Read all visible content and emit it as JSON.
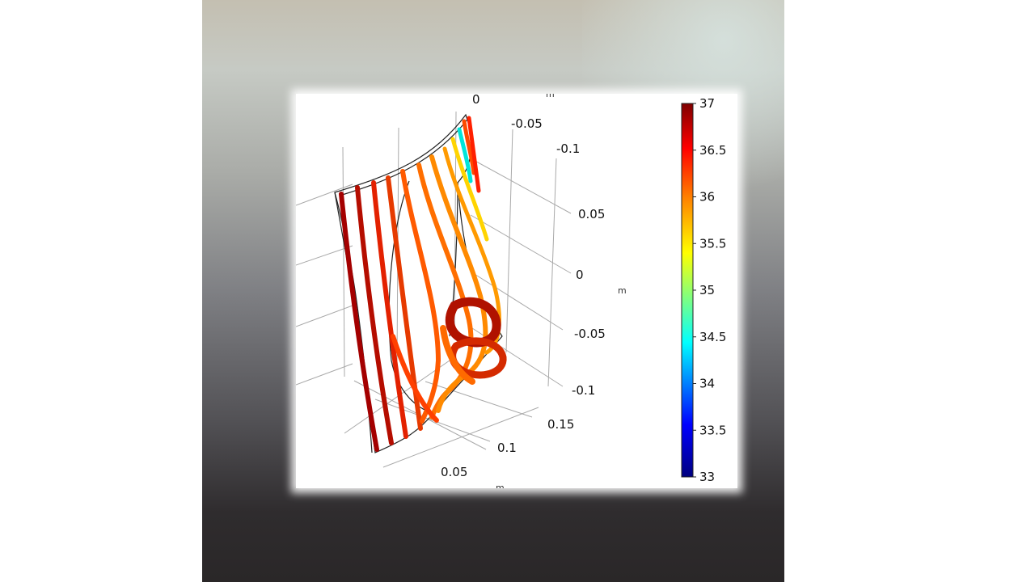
{
  "chart_data": {
    "type": "3d-streamline",
    "colorbar": {
      "min": 33,
      "max": 37,
      "ticks": [
        "37",
        "36.5",
        "36",
        "35.5",
        "35",
        "34.5",
        "34",
        "33.5",
        "33"
      ],
      "colormap": "rainbow",
      "colors": [
        "#00007f",
        "#0000ff",
        "#00ffff",
        "#ffff00",
        "#ff7f00",
        "#ff0000",
        "#7f0000"
      ]
    },
    "axes": {
      "y_ticks": [
        "0",
        "-0.05",
        "-0.1"
      ],
      "z_ticks": [
        "0.05",
        "0",
        "-0.05",
        "-0.1"
      ],
      "x_ticks": [
        "0.15",
        "0.1",
        "0.05"
      ],
      "units": {
        "top": "m",
        "right": "m",
        "bottom": "m"
      }
    }
  }
}
